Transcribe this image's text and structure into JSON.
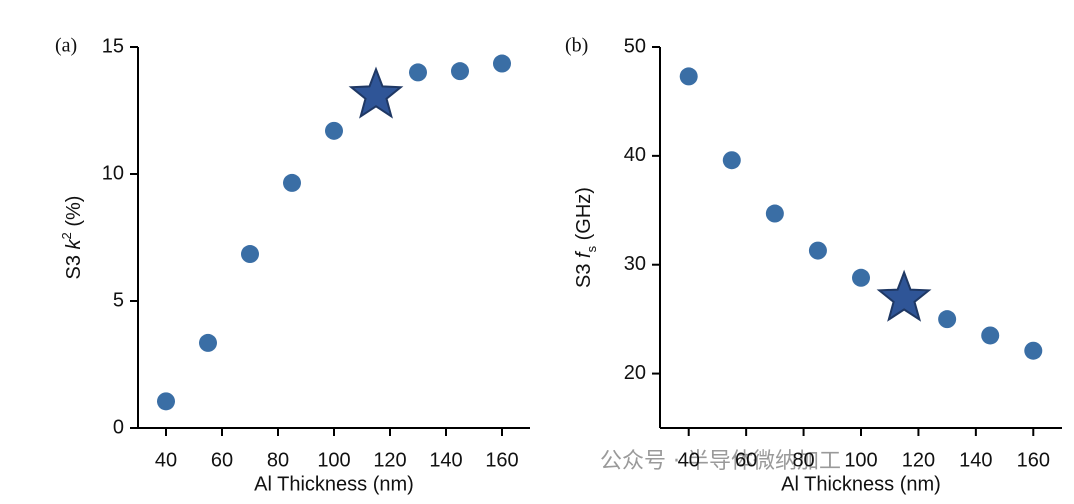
{
  "chart_data": [
    {
      "type": "scatter",
      "panel_label": "(a)",
      "y_label": [
        "S3 ",
        "k",
        "2",
        " (%)"
      ],
      "x_label": "Al Thickness (nm)",
      "x": [
        40,
        55,
        70,
        85,
        100,
        130,
        145,
        160
      ],
      "values": [
        1.05,
        3.35,
        6.85,
        9.65,
        11.7,
        14.0,
        14.05,
        14.35
      ],
      "highlight_x": 115,
      "highlight_y": 13.1,
      "color": "#3a6ea5",
      "highlight_color": "#2f5597",
      "xlim": [
        30,
        170
      ],
      "xticks": [
        40,
        60,
        80,
        100,
        120,
        140,
        160
      ],
      "ylim": [
        0,
        15
      ],
      "yticks": [
        0,
        5,
        10,
        15
      ]
    },
    {
      "type": "scatter",
      "panel_label": "(b)",
      "y_label": [
        "S3 ",
        "f",
        "s",
        " (GHz)"
      ],
      "x_label": "Al Thickness (nm)",
      "x": [
        40,
        55,
        70,
        85,
        100,
        130,
        145,
        160
      ],
      "values": [
        47.3,
        39.6,
        34.7,
        31.3,
        28.8,
        25.0,
        23.5,
        22.1
      ],
      "highlight_x": 115,
      "highlight_y": 26.9,
      "color": "#3a6ea5",
      "highlight_color": "#2f5597",
      "xlim": [
        30,
        170
      ],
      "xticks": [
        40,
        60,
        80,
        100,
        120,
        140,
        160
      ],
      "ylim": [
        15,
        50
      ],
      "yticks": [
        20,
        30,
        40,
        50
      ]
    }
  ],
  "watermark": "公众号 · 半导体微纳加工"
}
